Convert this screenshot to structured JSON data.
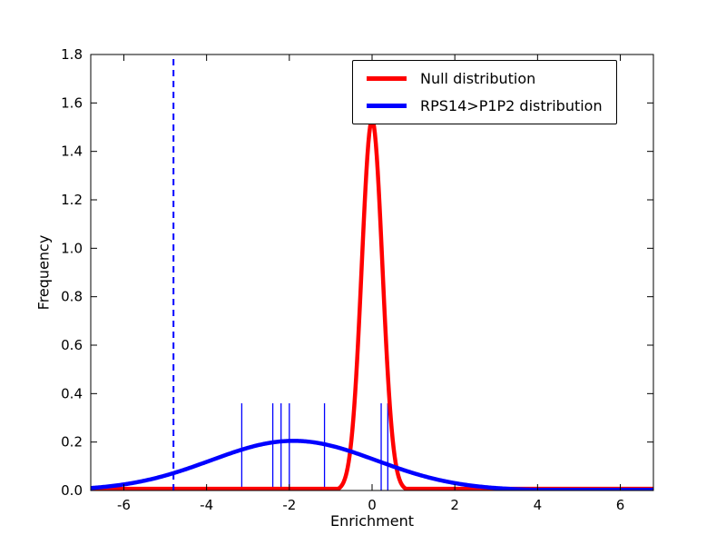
{
  "figure": {
    "background": "#ffffff"
  },
  "chart_data": {
    "type": "line",
    "title": "",
    "xlabel": "Enrichment",
    "ylabel": "Frequency",
    "xlim": [
      -6.8,
      6.8
    ],
    "ylim": [
      0.0,
      1.8
    ],
    "grid": false,
    "legend_position": "upper right",
    "xticks": {
      "values": [
        -6,
        -4,
        -2,
        0,
        2,
        4,
        6
      ],
      "labels": [
        "-6",
        "-4",
        "-2",
        "0",
        "2",
        "4",
        "6"
      ]
    },
    "yticks": {
      "values": [
        0.0,
        0.2,
        0.4,
        0.6,
        0.8,
        1.0,
        1.2,
        1.4,
        1.6,
        1.8
      ],
      "labels": [
        "0.0",
        "0.2",
        "0.4",
        "0.6",
        "0.8",
        "1.0",
        "1.2",
        "1.4",
        "1.6",
        "1.8"
      ]
    },
    "series": [
      {
        "name": "Null distribution",
        "color": "#ff0000",
        "curve": "gaussian",
        "mean": 0.0,
        "sd": 0.25,
        "peak": 1.53,
        "baseline": 0.007,
        "linewidth": 4.5
      },
      {
        "name": "RPS14>P1P2 distribution",
        "color": "#0000ff",
        "curve": "gaussian",
        "mean": -1.9,
        "sd": 2.0,
        "peak": 0.205,
        "baseline": 0.003,
        "linewidth": 4.5
      }
    ],
    "observations_rug": {
      "x": [
        -3.15,
        -2.4,
        -2.2,
        -2.0,
        -1.15,
        0.22,
        0.38
      ],
      "height": 0.36,
      "color": "#0000ff",
      "linewidth": 1.3
    },
    "vline": {
      "x": -4.8,
      "color": "#0000ff",
      "style": "dashed",
      "linewidth": 2
    }
  }
}
